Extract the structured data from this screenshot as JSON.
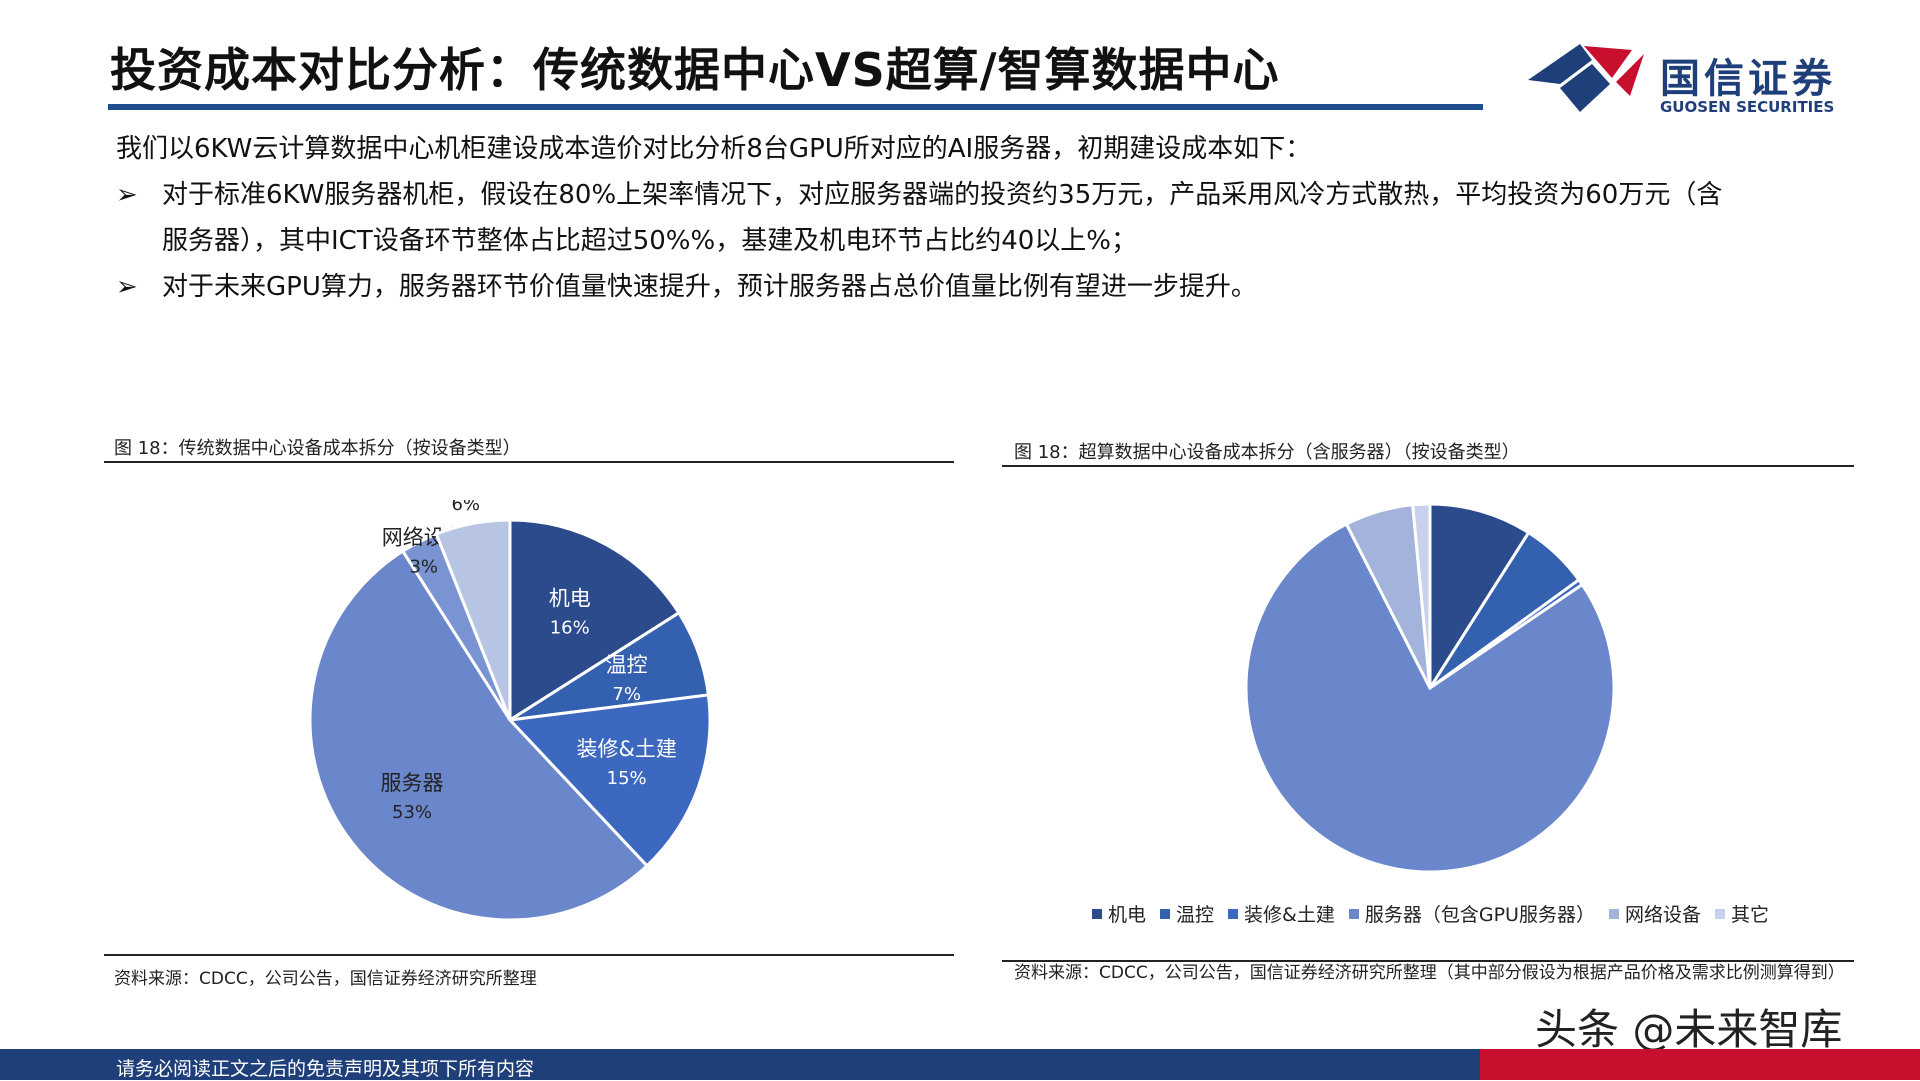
{
  "header": {
    "title": "投资成本对比分析：传统数据中心VS超算/智算数据中心",
    "logo_cn": "国信证券",
    "logo_en": "GUOSEN SECURITIES"
  },
  "body": {
    "intro": "我们以6KW云计算数据中心机柜建设成本造价对比分析8台GPU所对应的AI服务器，初期建设成本如下：",
    "bullet_mark": "➢",
    "bullet1_line1": "对于标准6KW服务器机柜，假设在80%上架率情况下，对应服务器端的投资约35万元，产品采用风冷方式散热，平均投资为60万元（含",
    "bullet1_line2": "服务器），其中ICT设备环节整体占比超过50%%，基建及机电环节占比约40以上%；",
    "bullet2": "对于未来GPU算力，服务器环节价值量快速提升，预计服务器占总价值量比例有望进一步提升。"
  },
  "figure_left": {
    "caption": "图 18：传统数据中心设备成本拆分（按设备类型）",
    "source": "资料来源：CDCC，公司公告，国信证券经济研究所整理"
  },
  "figure_right": {
    "caption": "图 18：超算数据中心设备成本拆分（含服务器）（按设备类型）",
    "source": "资料来源：CDCC，公司公告，国信证券经济研究所整理（其中部分假设为根据产品价格及需求比例测算得到）"
  },
  "chart_data": [
    {
      "type": "pie",
      "title": "",
      "labels": [
        "机电",
        "温控",
        "装修&土建",
        "服务器",
        "网络设备",
        "其它"
      ],
      "values": [
        16,
        7,
        15,
        53,
        3,
        6
      ],
      "value_labels": [
        "16%",
        "7%",
        "15%",
        "53%",
        "3%",
        "6%"
      ],
      "colors": [
        "#2b4b8c",
        "#3460b0",
        "#3d68c0",
        "#6b87cc",
        "#7a93d2",
        "#b8c4e4"
      ],
      "data_labels": true,
      "legend": false
    },
    {
      "type": "pie",
      "title": "",
      "labels": [
        "机电",
        "温控",
        "装修&土建",
        "服务器（包含GPU服务器）",
        "网络设备",
        "其它"
      ],
      "values": [
        9,
        6,
        0.5,
        77,
        6,
        1.5
      ],
      "colors": [
        "#2b4b8c",
        "#3460b0",
        "#3d68c0",
        "#6b87cc",
        "#a3b3dc",
        "#c9d2ec"
      ],
      "data_labels": false,
      "legend": true,
      "legend_position": "bottom"
    }
  ],
  "footer": {
    "disclaimer": "请务必阅读正文之后的免责声明及其项下所有内容",
    "watermark": "头条 @未来智库"
  }
}
